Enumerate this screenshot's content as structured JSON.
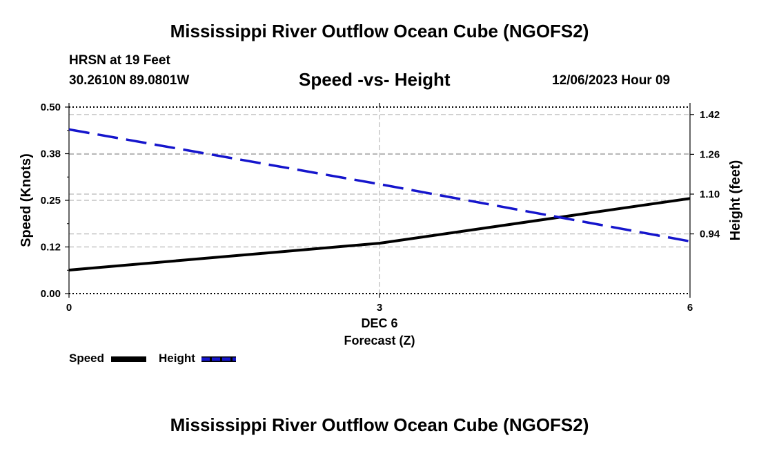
{
  "header": {
    "title_top": "Mississippi River Outflow Ocean Cube (NGOFS2)",
    "station": "HRSN at 19 Feet",
    "coords": "30.2610N  89.0801W",
    "date": "12/06/2023 Hour 09",
    "title_bottom": "Mississippi River Outflow Ocean Cube (NGOFS2)"
  },
  "chart_data": {
    "type": "line",
    "title": "Speed -vs- Height",
    "xlabel": "Forecast (Z)",
    "x_date_label": "DEC 6",
    "x": [
      0,
      3,
      6
    ],
    "xticks": [
      "0",
      "3",
      "6"
    ],
    "xlim": [
      0,
      6
    ],
    "left_axis": {
      "label": "Speed (Knots)",
      "ylim": [
        0,
        0.5
      ],
      "ticks": [
        0.0,
        0.125,
        0.25,
        0.375,
        0.5
      ],
      "tick_labels": [
        "0.00",
        "0.12",
        "0.25",
        "0.38",
        "0.50"
      ]
    },
    "right_axis": {
      "label": "Height (feet)",
      "ylim": [
        0.7,
        1.45
      ],
      "ticks": [
        0.94,
        1.1,
        1.26,
        1.42
      ],
      "tick_labels": [
        "0.94",
        "1.10",
        "1.26",
        "1.42"
      ]
    },
    "series": [
      {
        "name": "Speed",
        "axis": "left",
        "color": "#000000",
        "style": "solid",
        "values": [
          0.063,
          0.135,
          0.255
        ]
      },
      {
        "name": "Height",
        "axis": "right",
        "color": "#1515cc",
        "style": "dashed",
        "values": [
          1.36,
          1.14,
          0.91
        ]
      }
    ],
    "legend": {
      "placement": "bottom-left"
    },
    "grid": true
  }
}
